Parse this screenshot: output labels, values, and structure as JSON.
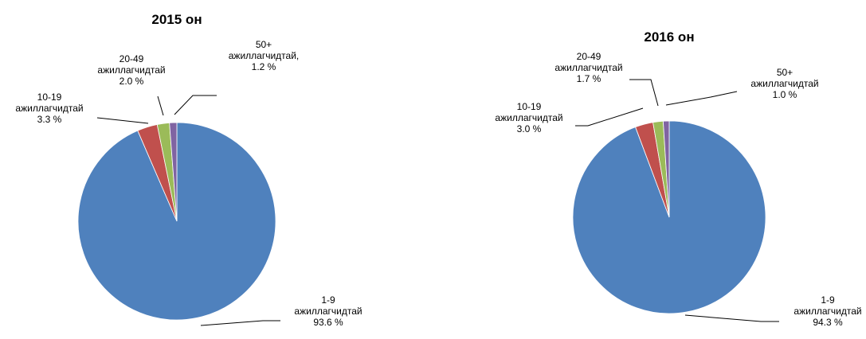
{
  "colors": {
    "slice_1": "#4F81BD",
    "slice_2": "#C0504D",
    "slice_3": "#9BBB59",
    "slice_4": "#8064A2"
  },
  "chart_data": [
    {
      "type": "pie",
      "title": "2015 он",
      "slices": [
        {
          "lines": [
            "1-9",
            "ажиллагчидтай",
            "93.6 %"
          ],
          "value": 93.6
        },
        {
          "lines": [
            "10-19",
            "ажиллагчидтай",
            "3.3 %"
          ],
          "value": 3.3
        },
        {
          "lines": [
            "20-49",
            "ажиллагчидтай",
            "2.0 %"
          ],
          "value": 2.0
        },
        {
          "lines": [
            "50+",
            "ажиллагчидтай,",
            "1.2 %"
          ],
          "value": 1.2
        }
      ]
    },
    {
      "type": "pie",
      "title": "2016 он",
      "slices": [
        {
          "lines": [
            "1-9",
            "ажиллагчидтай",
            "94.3 %"
          ],
          "value": 94.3
        },
        {
          "lines": [
            "10-19",
            "ажиллагчидтай",
            "3.0 %"
          ],
          "value": 3.0
        },
        {
          "lines": [
            "20-49",
            "ажиллагчидтай",
            "1.7 %"
          ],
          "value": 1.7
        },
        {
          "lines": [
            "50+",
            "ажиллагчидтай",
            "1.0 %"
          ],
          "value": 1.0
        }
      ]
    }
  ]
}
